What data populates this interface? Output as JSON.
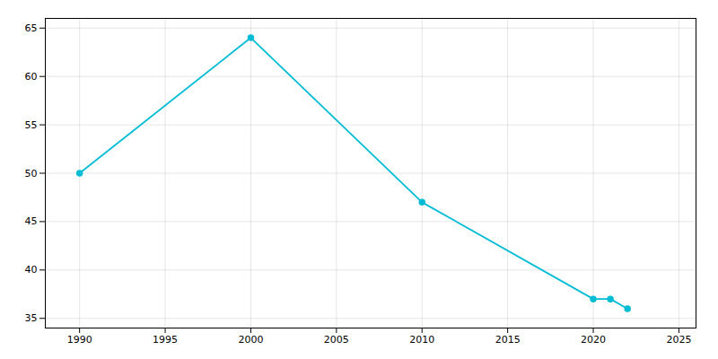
{
  "chart_data": {
    "type": "line",
    "x": [
      1990,
      2000,
      2010,
      2020,
      2021,
      2022
    ],
    "values": [
      50,
      64,
      47,
      37,
      37,
      36
    ],
    "color": "#00bcd4",
    "marker": "circle",
    "xlim": [
      1988,
      2026
    ],
    "ylim": [
      34,
      66
    ],
    "xticks": [
      1990,
      1995,
      2000,
      2005,
      2010,
      2015,
      2020,
      2025
    ],
    "yticks": [
      35,
      40,
      45,
      50,
      55,
      60,
      65
    ],
    "grid": true
  }
}
